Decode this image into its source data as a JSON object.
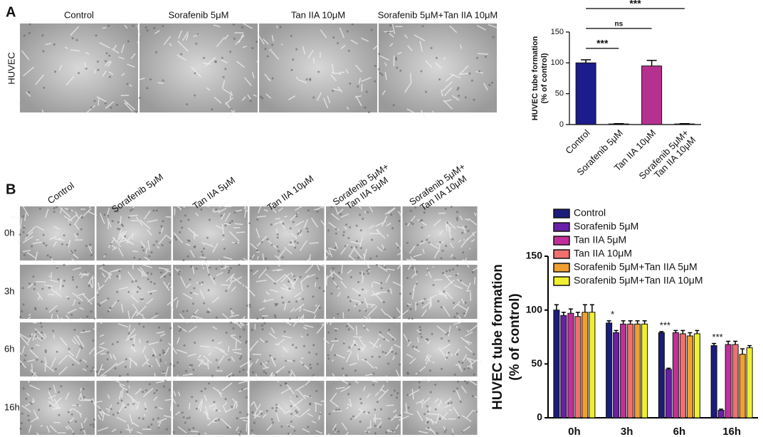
{
  "figure": {
    "panel_a": {
      "label": "A",
      "row": "HUVEC",
      "columns": [
        "Control",
        "Sorafenib 5μM",
        "Tan IIA 10μM",
        "Sorafenib 5μM+Tan IIA 10μM"
      ]
    },
    "panel_b": {
      "label": "B",
      "rows": [
        "0h",
        "3h",
        "6h",
        "16h"
      ],
      "columns": [
        [
          "Control"
        ],
        [
          "Sorafenib 5μM"
        ],
        [
          "Tan IIA 5μM"
        ],
        [
          "Tan IIA 10μM"
        ],
        [
          "Sorafenib 5μM+",
          "Tan IIA 5μM"
        ],
        [
          "Sorafenib 5μM+",
          "Tan IIA 10μM"
        ]
      ]
    }
  },
  "chart_data": [
    {
      "type": "bar",
      "ylabel": [
        "HUVEC tube formation",
        "(% of control)"
      ],
      "categories": [
        [
          "Control"
        ],
        [
          "Sorafenib 5μM"
        ],
        [
          "Tan IIA 10μM"
        ],
        [
          "Sorafenib 5μM+",
          "Tan IIA 10μM"
        ]
      ],
      "values": [
        100,
        1,
        95,
        1
      ],
      "errors": [
        5,
        0.5,
        9,
        0.5
      ],
      "colors": [
        "#1c1c8c",
        "#1c1c8c",
        "#b5318f",
        "#b5318f"
      ],
      "ylim": [
        0,
        150
      ],
      "yticks": [
        0,
        50,
        100,
        150
      ],
      "annotations": [
        {
          "text": "***",
          "from": 0,
          "to": 3
        },
        {
          "text": "ns",
          "from": 0,
          "to": 2
        },
        {
          "text": "***",
          "from": 0,
          "to": 1
        }
      ]
    },
    {
      "type": "grouped_bar",
      "ylabel": [
        "HUVEC tube formation",
        "(% of control)"
      ],
      "categories": [
        "0h",
        "3h",
        "6h",
        "16h"
      ],
      "series": [
        {
          "name": "Control",
          "color": "#1c1c7a",
          "values": [
            100,
            88,
            79,
            67
          ],
          "errors": [
            5,
            2,
            1,
            2
          ]
        },
        {
          "name": "Sorafenib 5μM",
          "color": "#6a1fa8",
          "values": [
            95,
            79,
            45,
            7
          ],
          "errors": [
            3,
            2,
            1,
            1
          ]
        },
        {
          "name": "Tan IIA 5μM",
          "color": "#c0309a",
          "values": [
            97,
            87,
            79,
            68
          ],
          "errors": [
            4,
            3,
            2,
            3
          ]
        },
        {
          "name": "Tan IIA 10μM",
          "color": "#f07070",
          "values": [
            94,
            87,
            78,
            68
          ],
          "errors": [
            4,
            3,
            3,
            3
          ]
        },
        {
          "name": "Sorafenib 5μM+Tan IIA 5μM",
          "color": "#f0a030",
          "values": [
            98,
            87,
            76,
            59
          ],
          "errors": [
            7,
            3,
            3,
            5
          ]
        },
        {
          "name": "Sorafenib 5μM+Tan IIA 10μM",
          "color": "#f0f030",
          "values": [
            98,
            87,
            78,
            65
          ],
          "errors": [
            7,
            3,
            3,
            2
          ]
        }
      ],
      "ylim": [
        0,
        150
      ],
      "yticks": [
        0,
        50,
        100,
        150
      ],
      "annotations": [
        {
          "text": "*",
          "category": 1
        },
        {
          "text": "***",
          "category": 2
        },
        {
          "text": "***",
          "category": 3
        }
      ]
    }
  ]
}
